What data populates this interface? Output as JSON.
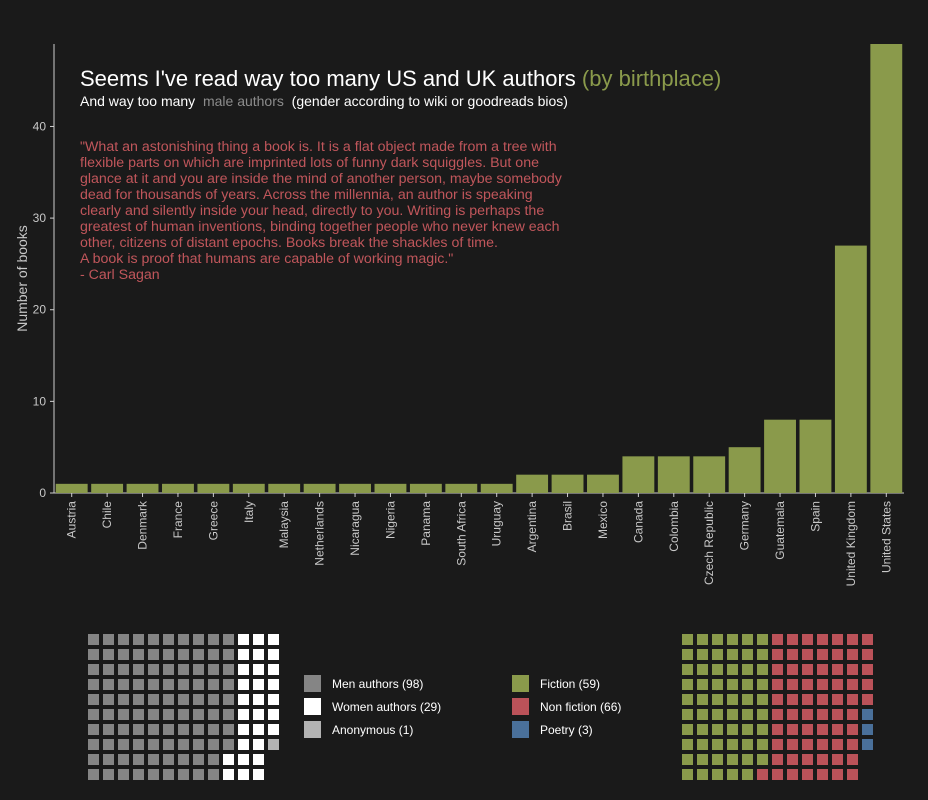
{
  "title": {
    "main": "Seems I've read way too many US and UK authors",
    "accent": "(by birthplace)"
  },
  "subtitle": {
    "before": "And way too many",
    "muted": "male authors",
    "after": "(gender according to wiki or goodreads bios)"
  },
  "quote": [
    "\"What an astonishing thing a book is. It is a flat object made from a tree with",
    "flexible parts on which are imprinted lots of funny dark squiggles. But one",
    "glance at it and you are inside the mind of another person, maybe somebody",
    "dead for thousands of years. Across the millennia, an author is speaking",
    "clearly and silently inside your head, directly to you. Writing is perhaps the",
    "greatest of human inventions, binding together people who never knew each",
    "other, citizens of distant epochs. Books break the shackles of time.",
    "A book is proof that humans are capable of working magic.\"",
    "- Carl Sagan"
  ],
  "colors": {
    "background": "#1a1a1a",
    "bar": "#8a9a4b",
    "men": "#858585",
    "women": "#ffffff",
    "anonymous": "#b3b3b3",
    "fiction": "#8a9a4b",
    "nonfiction": "#bb5259",
    "poetry": "#4a709a",
    "axis_text": "#c8c8c8"
  },
  "chart_data": [
    {
      "type": "bar",
      "categories": [
        "Austria",
        "Chile",
        "Denmark",
        "France",
        "Greece",
        "Italy",
        "Malaysia",
        "Netherlands",
        "Nicaragua",
        "Nigeria",
        "Panama",
        "South Africa",
        "Uruguay",
        "Argentina",
        "Brasil",
        "Mexico",
        "Canada",
        "Colombia",
        "Czech Republic",
        "Germany",
        "Guatemala",
        "Spain",
        "United Kingdom",
        "United States"
      ],
      "values": [
        1,
        1,
        1,
        1,
        1,
        1,
        1,
        1,
        1,
        1,
        1,
        1,
        1,
        2,
        2,
        2,
        4,
        4,
        4,
        5,
        8,
        8,
        27,
        49
      ],
      "xlabel": "",
      "ylabel": "Number of books",
      "yticks": [
        0,
        10,
        20,
        30,
        40
      ],
      "ylim": [
        0,
        49
      ],
      "grid": false
    },
    {
      "type": "waffle",
      "segments": [
        {
          "label": "Men authors (98)",
          "value": 98,
          "color_key": "men"
        },
        {
          "label": "Women authors (29)",
          "value": 29,
          "color_key": "women"
        },
        {
          "label": "Anonymous (1)",
          "value": 1,
          "color_key": "anonymous"
        }
      ],
      "rows": 10
    },
    {
      "type": "waffle",
      "segments": [
        {
          "label": "Fiction (59)",
          "value": 59,
          "color_key": "fiction"
        },
        {
          "label": "Non fiction (66)",
          "value": 66,
          "color_key": "nonfiction"
        },
        {
          "label": "Poetry (3)",
          "value": 3,
          "color_key": "poetry"
        }
      ],
      "rows": 10
    }
  ]
}
